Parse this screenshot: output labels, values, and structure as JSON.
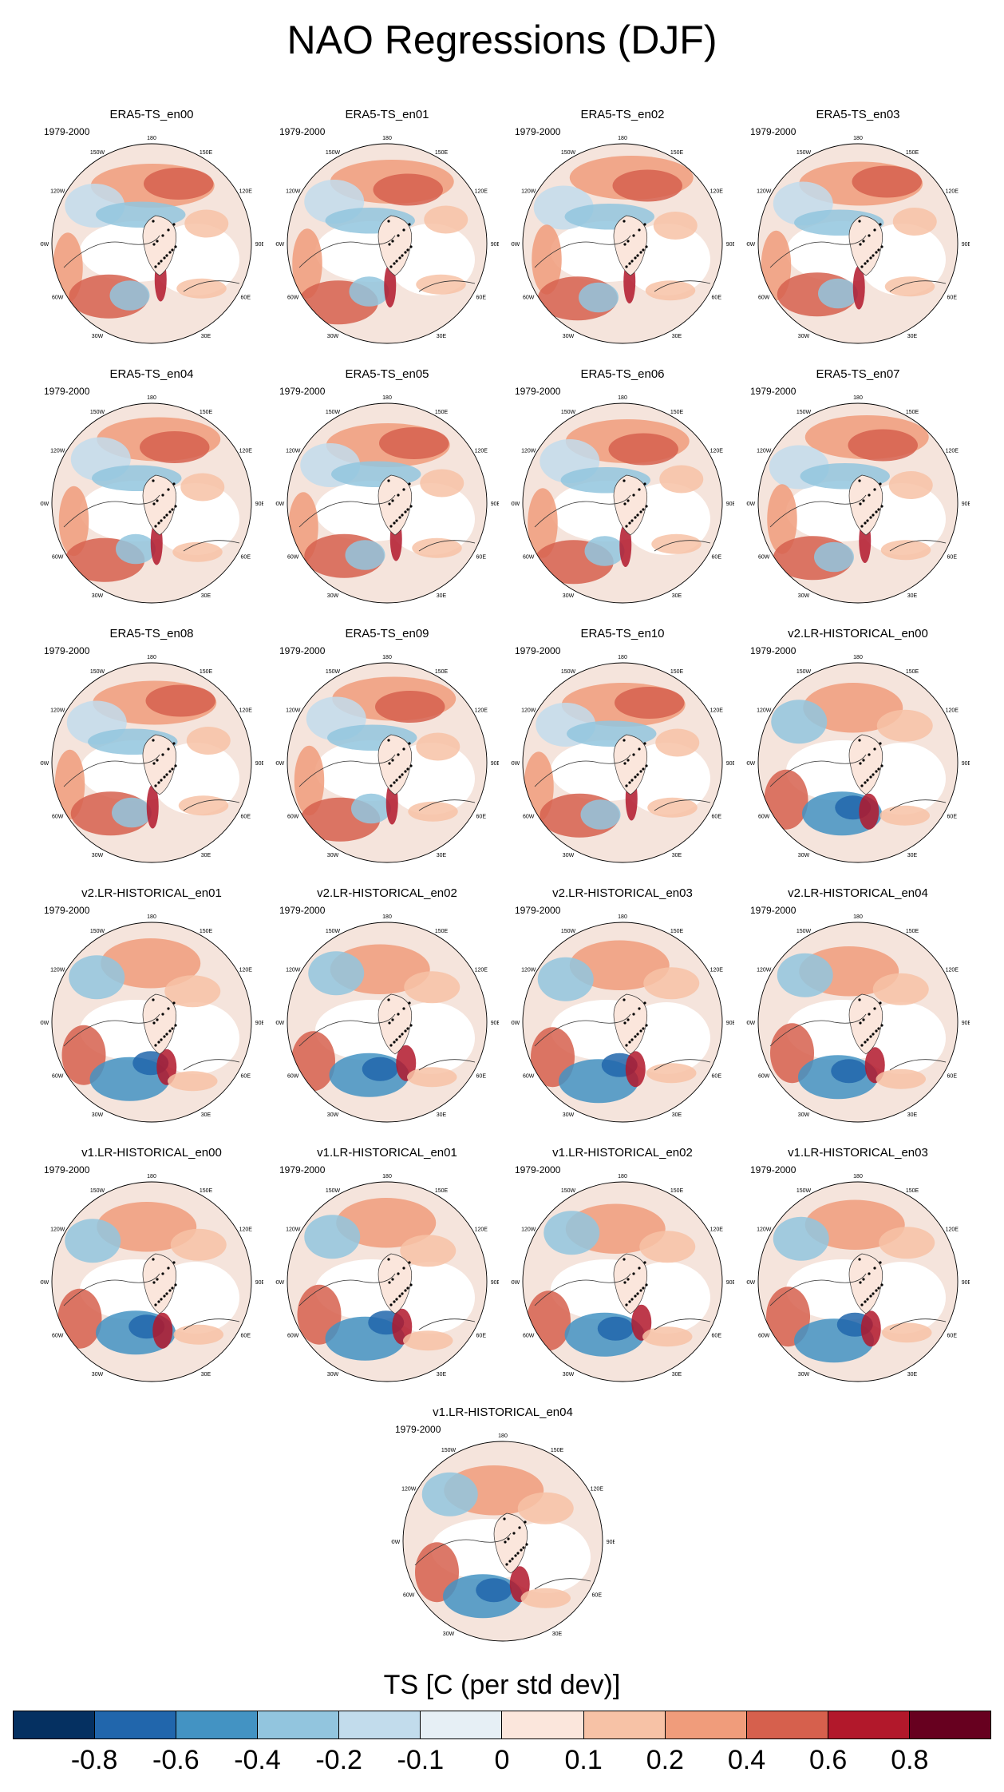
{
  "title": "NAO Regressions (DJF)",
  "period": "1979-2000",
  "panels": [
    {
      "name": "ERA5-TS_en00",
      "pattern": "era5"
    },
    {
      "name": "ERA5-TS_en01",
      "pattern": "era5"
    },
    {
      "name": "ERA5-TS_en02",
      "pattern": "era5"
    },
    {
      "name": "ERA5-TS_en03",
      "pattern": "era5"
    },
    {
      "name": "ERA5-TS_en04",
      "pattern": "era5"
    },
    {
      "name": "ERA5-TS_en05",
      "pattern": "era5"
    },
    {
      "name": "ERA5-TS_en06",
      "pattern": "era5"
    },
    {
      "name": "ERA5-TS_en07",
      "pattern": "era5"
    },
    {
      "name": "ERA5-TS_en08",
      "pattern": "era5"
    },
    {
      "name": "ERA5-TS_en09",
      "pattern": "era5"
    },
    {
      "name": "ERA5-TS_en10",
      "pattern": "era5"
    },
    {
      "name": "v2.LR-HISTORICAL_en00",
      "pattern": "model"
    },
    {
      "name": "v2.LR-HISTORICAL_en01",
      "pattern": "model"
    },
    {
      "name": "v2.LR-HISTORICAL_en02",
      "pattern": "model"
    },
    {
      "name": "v2.LR-HISTORICAL_en03",
      "pattern": "model"
    },
    {
      "name": "v2.LR-HISTORICAL_en04",
      "pattern": "model"
    },
    {
      "name": "v1.LR-HISTORICAL_en00",
      "pattern": "model"
    },
    {
      "name": "v1.LR-HISTORICAL_en01",
      "pattern": "model"
    },
    {
      "name": "v1.LR-HISTORICAL_en02",
      "pattern": "model"
    },
    {
      "name": "v1.LR-HISTORICAL_en03",
      "pattern": "model"
    },
    {
      "name": "v1.LR-HISTORICAL_en04",
      "pattern": "model"
    }
  ],
  "lon_labels": [
    "180",
    "150E",
    "120E",
    "90E",
    "60E",
    "30E",
    "0",
    "30W",
    "60W",
    "90W",
    "120W",
    "150W"
  ],
  "colorbar": {
    "title": "TS [C (per std dev)]",
    "tick_labels": [
      "-0.8",
      "-0.6",
      "-0.4",
      "-0.2",
      "-0.1",
      "0",
      "0.1",
      "0.2",
      "0.4",
      "0.6",
      "0.8"
    ],
    "colors": [
      "#053061",
      "#2166ac",
      "#4393c3",
      "#92c5de",
      "#c2dcec",
      "#e6eff5",
      "#fbe6dc",
      "#f7c2a6",
      "#f09c7b",
      "#d6604d",
      "#b2182b",
      "#67001f"
    ]
  }
}
